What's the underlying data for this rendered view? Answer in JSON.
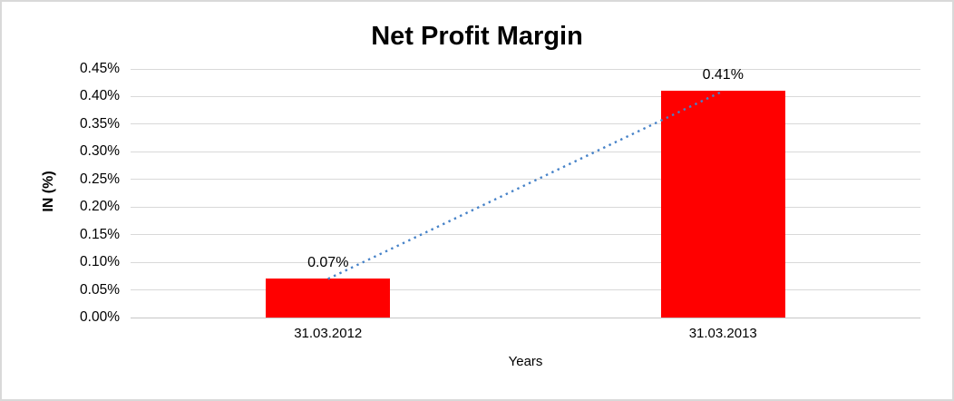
{
  "chart_data": {
    "type": "bar",
    "title": "Net Profit Margin",
    "xlabel": "Years",
    "ylabel": "IN (%)",
    "categories": [
      "31.03.2012",
      "31.03.2013"
    ],
    "series": [
      {
        "name": "Net Profit Margin",
        "values": [
          0.07,
          0.41
        ]
      }
    ],
    "data_labels": [
      "0.07%",
      "0.41%"
    ],
    "y_ticks": [
      "0.00%",
      "0.05%",
      "0.10%",
      "0.15%",
      "0.20%",
      "0.25%",
      "0.30%",
      "0.35%",
      "0.40%",
      "0.45%"
    ],
    "ylim": [
      0,
      0.45
    ],
    "grid": true,
    "legend_position": "none",
    "trendline": {
      "type": "linear",
      "style": "dotted",
      "color": "#4682C8",
      "from_label": "0.07%",
      "to_label": "0.41%"
    },
    "colors": {
      "bar": "#FF0000",
      "gridline": "#D9D9D9",
      "axis_line": "#C6C6C6",
      "text": "#000000",
      "border": "#D9D9D9",
      "background": "#FFFFFF"
    }
  }
}
